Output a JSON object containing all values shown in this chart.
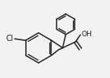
{
  "bg_color": "#f2f2f2",
  "line_color": "#222222",
  "line_width": 1.1,
  "font_size": 6.5,
  "figsize": [
    1.4,
    0.99
  ],
  "dpi": 100,
  "xlim": [
    -1.1,
    1.5
  ],
  "ylim": [
    -0.85,
    1.1
  ]
}
